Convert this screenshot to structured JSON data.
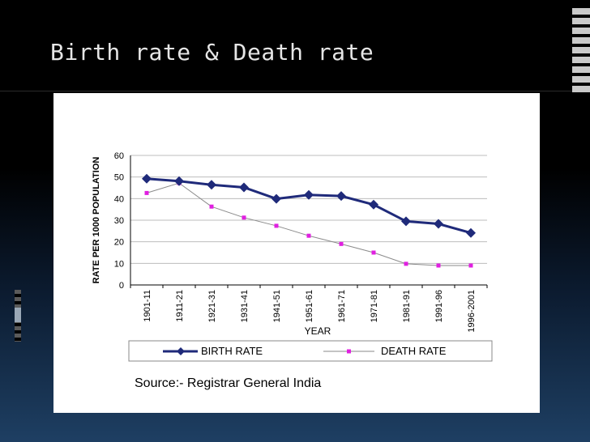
{
  "slide": {
    "title": "Birth rate & Death rate",
    "source": "Source:- Registrar General India"
  },
  "colors": {
    "birth": "#1f2a7a",
    "death": "#e020e0",
    "death_line": "#8a8a8a"
  },
  "chart_data": {
    "type": "line",
    "title": "",
    "xlabel": "YEAR",
    "ylabel": "RATE PER 1000 POPULATION",
    "categories": [
      "1901-11",
      "1911-21",
      "1921-31",
      "1931-41",
      "1941-51",
      "1951-61",
      "1961-71",
      "1971-81",
      "1981-91",
      "1991-96",
      "1996-2001"
    ],
    "ylim": [
      0,
      60
    ],
    "yticks": [
      0,
      10,
      20,
      30,
      40,
      50,
      60
    ],
    "grid": true,
    "legend": "bottom",
    "series": [
      {
        "name": "BIRTH RATE",
        "values": [
          49.2,
          48.1,
          46.4,
          45.2,
          39.9,
          41.7,
          41.2,
          37.2,
          29.5,
          28.3,
          24.1
        ]
      },
      {
        "name": "DEATH RATE",
        "values": [
          42.6,
          47.2,
          36.3,
          31.2,
          27.4,
          22.8,
          19.0,
          15.0,
          9.8,
          9.0,
          9.0
        ]
      }
    ]
  }
}
